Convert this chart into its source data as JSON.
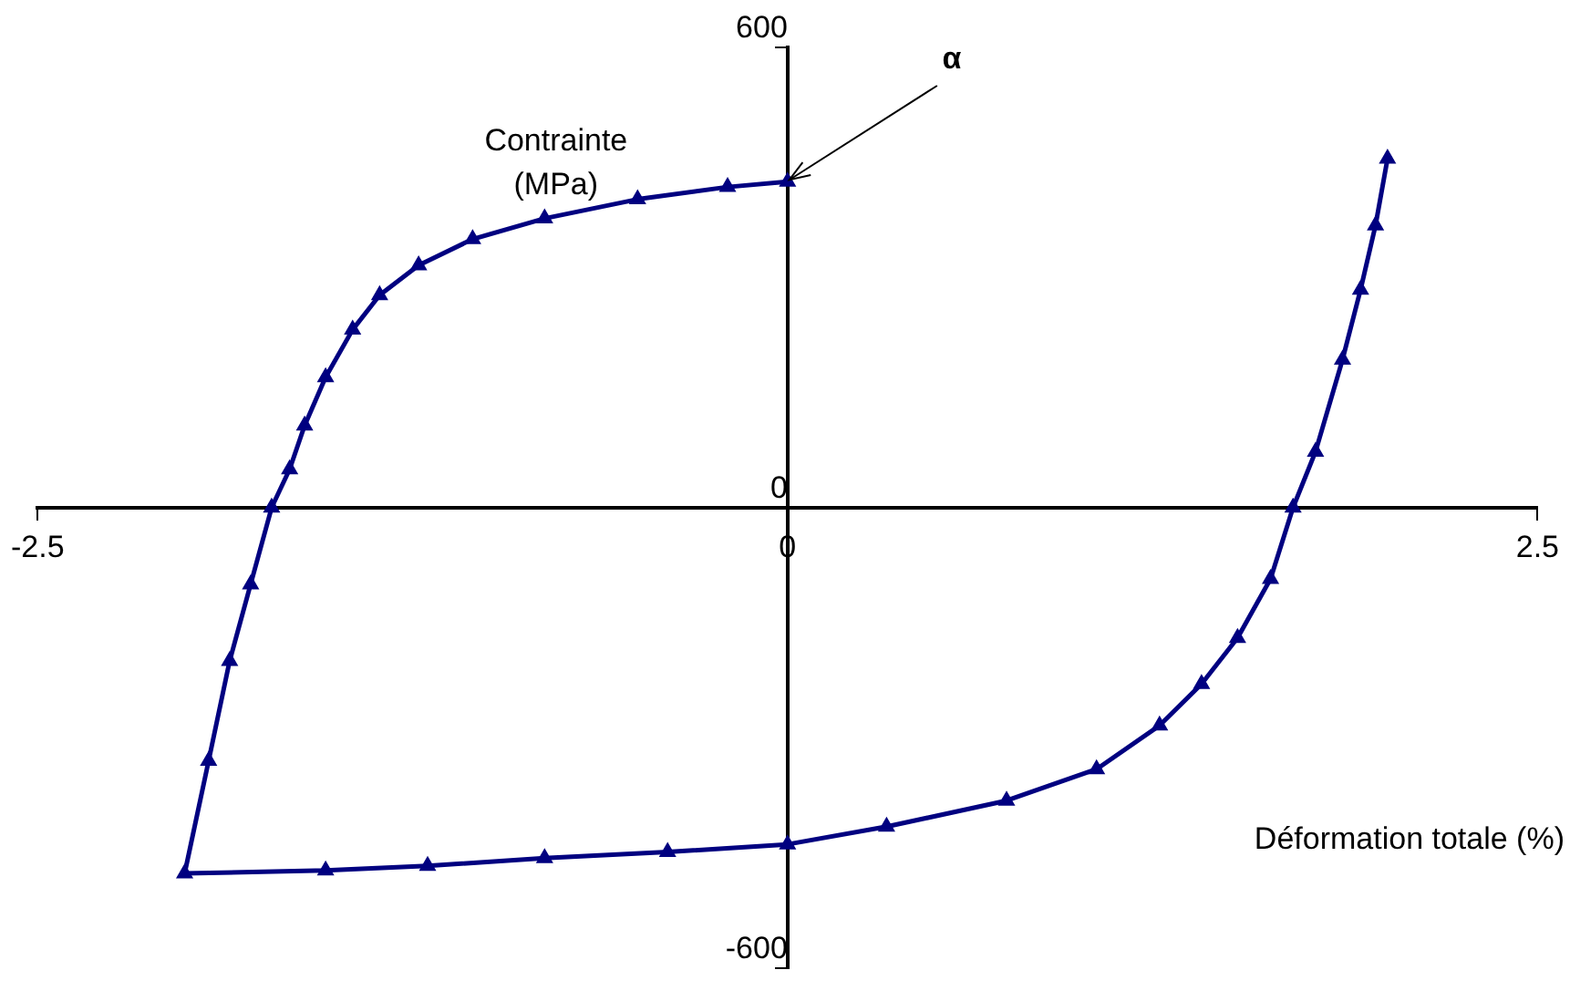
{
  "chart_data": {
    "type": "line",
    "xlabel": "Déformation totale (%)",
    "ylabel": "Contrainte\n(MPa)",
    "marker": "triangle",
    "grid": false,
    "legend": false,
    "xlim": [
      -2.5,
      2.5
    ],
    "xticks": [
      -2.5,
      0,
      2.5
    ],
    "ylim": [
      -600,
      600
    ],
    "yticks": [
      -600,
      0,
      600
    ],
    "annotations": [
      {
        "text": "α",
        "x": 0,
        "y": 425
      }
    ],
    "series": [
      {
        "color": "#000080",
        "x": [
          0,
          -0.2,
          -0.5,
          -0.81,
          -1.05,
          -1.23,
          -1.36,
          -1.45,
          -1.54,
          -1.61,
          -1.66,
          -1.72,
          -1.79,
          -1.86,
          -1.93,
          -2.01,
          -1.54,
          -1.2,
          -0.81,
          -0.4,
          0,
          0.33,
          0.73,
          1.03,
          1.24,
          1.38,
          1.5,
          1.61,
          1.685,
          1.76,
          1.85,
          1.91,
          1.96,
          2.0
        ],
        "values": [
          425,
          418,
          402,
          377,
          350,
          316,
          277,
          232,
          170,
          107,
          50,
          0,
          -100,
          -200,
          -330,
          -477,
          -473,
          -467,
          -457,
          -449,
          -439,
          -416,
          -382,
          -341,
          -284,
          -230,
          -170,
          -93,
          0,
          73,
          193,
          284,
          368,
          455
        ]
      }
    ]
  }
}
